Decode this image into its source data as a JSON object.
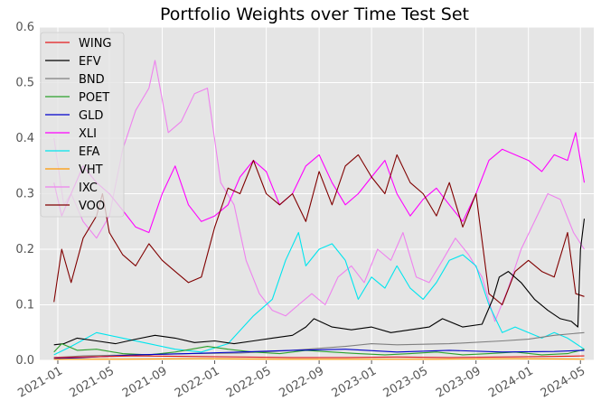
{
  "chart_data": {
    "type": "line",
    "title": "Portfolio Weights over Time Test Set",
    "xlabel": "",
    "ylabel": "",
    "ylim": [
      0,
      0.6
    ],
    "xlim": [
      "2020-11-20",
      "2024-06-01"
    ],
    "yticks": [
      "0.0",
      "0.1",
      "0.2",
      "0.3",
      "0.4",
      "0.5",
      "0.6"
    ],
    "xticks": [
      "2021-01",
      "2021-05",
      "2021-09",
      "2022-01",
      "2022-05",
      "2022-09",
      "2023-01",
      "2023-05",
      "2023-09",
      "2024-01",
      "2024-05"
    ],
    "grid": true,
    "legend_position": "top-left",
    "series": [
      {
        "name": "WING",
        "color": "#e41a1c",
        "x": [
          "2020-12-23",
          "2021-03-01",
          "2021-07-01",
          "2021-11-01",
          "2022-03-01",
          "2022-07-01",
          "2022-11-01",
          "2023-03-01",
          "2023-07-01",
          "2023-11-01",
          "2024-03-01",
          "2024-05-10"
        ],
        "y": [
          0.005,
          0.006,
          0.008,
          0.007,
          0.006,
          0.005,
          0.005,
          0.006,
          0.005,
          0.006,
          0.007,
          0.008
        ]
      },
      {
        "name": "EFV",
        "color": "#000000",
        "x": [
          "2020-12-23",
          "2021-01-15",
          "2021-02-15",
          "2021-04-01",
          "2021-05-15",
          "2021-07-01",
          "2021-08-15",
          "2021-10-01",
          "2021-11-15",
          "2022-01-01",
          "2022-02-15",
          "2022-04-01",
          "2022-05-15",
          "2022-07-01",
          "2022-08-01",
          "2022-08-20",
          "2022-10-01",
          "2022-11-15",
          "2023-01-01",
          "2023-02-15",
          "2023-04-01",
          "2023-05-15",
          "2023-06-15",
          "2023-08-01",
          "2023-09-15",
          "2023-10-10",
          "2023-10-25",
          "2023-11-15",
          "2023-12-15",
          "2024-01-15",
          "2024-02-15",
          "2024-03-15",
          "2024-04-10",
          "2024-04-25",
          "2024-05-01",
          "2024-05-10"
        ],
        "y": [
          0.028,
          0.03,
          0.04,
          0.035,
          0.03,
          0.038,
          0.045,
          0.04,
          0.032,
          0.035,
          0.03,
          0.035,
          0.04,
          0.045,
          0.06,
          0.075,
          0.06,
          0.055,
          0.06,
          0.05,
          0.055,
          0.06,
          0.075,
          0.06,
          0.065,
          0.11,
          0.15,
          0.16,
          0.14,
          0.11,
          0.09,
          0.075,
          0.07,
          0.06,
          0.2,
          0.255
        ]
      },
      {
        "name": "BND",
        "color": "#7f7f7f",
        "x": [
          "2020-12-23",
          "2021-03-01",
          "2021-07-01",
          "2021-11-01",
          "2022-03-01",
          "2022-07-01",
          "2022-11-01",
          "2023-01-01",
          "2023-03-01",
          "2023-07-01",
          "2023-11-01",
          "2024-01-01",
          "2024-03-01",
          "2024-05-10"
        ],
        "y": [
          0.005,
          0.008,
          0.01,
          0.012,
          0.013,
          0.018,
          0.025,
          0.03,
          0.028,
          0.03,
          0.035,
          0.038,
          0.045,
          0.05
        ]
      },
      {
        "name": "POET",
        "color": "#2ca02c",
        "x": [
          "2020-12-23",
          "2021-01-10",
          "2021-02-15",
          "2021-04-01",
          "2021-06-01",
          "2021-08-01",
          "2021-10-01",
          "2021-12-15",
          "2022-02-01",
          "2022-04-01",
          "2022-06-01",
          "2022-08-01",
          "2022-10-01",
          "2022-12-01",
          "2023-02-01",
          "2023-04-01",
          "2023-06-01",
          "2023-08-01",
          "2023-10-01",
          "2023-12-01",
          "2024-02-01",
          "2024-04-01",
          "2024-05-10"
        ],
        "y": [
          0.015,
          0.03,
          0.018,
          0.02,
          0.012,
          0.01,
          0.015,
          0.025,
          0.02,
          0.015,
          0.012,
          0.018,
          0.015,
          0.012,
          0.01,
          0.012,
          0.015,
          0.01,
          0.012,
          0.015,
          0.01,
          0.012,
          0.02
        ]
      },
      {
        "name": "GLD",
        "color": "#0000cc",
        "x": [
          "2020-12-23",
          "2021-03-01",
          "2021-07-01",
          "2021-11-01",
          "2022-03-01",
          "2022-07-01",
          "2022-11-01",
          "2023-03-01",
          "2023-07-01",
          "2023-11-01",
          "2024-03-01",
          "2024-05-10"
        ],
        "y": [
          0.003,
          0.005,
          0.01,
          0.012,
          0.015,
          0.018,
          0.02,
          0.015,
          0.018,
          0.015,
          0.016,
          0.018
        ]
      },
      {
        "name": "XLI",
        "color": "#ff00ff",
        "x": [
          "2020-12-23",
          "2021-01-10",
          "2021-02-01",
          "2021-03-01",
          "2021-04-01",
          "2021-05-01",
          "2021-06-01",
          "2021-07-01",
          "2021-08-01",
          "2021-09-01",
          "2021-10-01",
          "2021-11-01",
          "2021-12-01",
          "2022-01-01",
          "2022-02-01",
          "2022-03-01",
          "2022-04-01",
          "2022-05-01",
          "2022-06-01",
          "2022-07-01",
          "2022-08-01",
          "2022-09-01",
          "2022-10-01",
          "2022-11-01",
          "2022-12-01",
          "2023-01-01",
          "2023-02-01",
          "2023-03-01",
          "2023-04-01",
          "2023-05-01",
          "2023-06-01",
          "2023-07-01",
          "2023-08-01",
          "2023-09-01",
          "2023-10-01",
          "2023-11-01",
          "2023-12-01",
          "2024-01-01",
          "2024-02-01",
          "2024-03-01",
          "2024-04-01",
          "2024-04-20",
          "2024-05-10"
        ],
        "y": [
          0.32,
          0.26,
          0.3,
          0.35,
          0.32,
          0.3,
          0.27,
          0.24,
          0.23,
          0.3,
          0.35,
          0.28,
          0.25,
          0.26,
          0.28,
          0.33,
          0.36,
          0.34,
          0.28,
          0.3,
          0.35,
          0.37,
          0.32,
          0.28,
          0.3,
          0.33,
          0.36,
          0.3,
          0.26,
          0.29,
          0.31,
          0.28,
          0.25,
          0.3,
          0.36,
          0.38,
          0.37,
          0.36,
          0.34,
          0.37,
          0.36,
          0.41,
          0.32
        ]
      },
      {
        "name": "EFA",
        "color": "#00e5ee",
        "x": [
          "2020-12-23",
          "2021-02-01",
          "2021-04-01",
          "2021-06-01",
          "2021-08-01",
          "2021-10-01",
          "2021-12-01",
          "2022-02-01",
          "2022-04-01",
          "2022-05-15",
          "2022-06-15",
          "2022-07-15",
          "2022-08-01",
          "2022-09-01",
          "2022-10-01",
          "2022-11-01",
          "2022-12-01",
          "2023-01-01",
          "2023-02-01",
          "2023-03-01",
          "2023-04-01",
          "2023-05-01",
          "2023-06-01",
          "2023-07-01",
          "2023-08-01",
          "2023-09-01",
          "2023-10-01",
          "2023-11-01",
          "2023-12-01",
          "2024-01-01",
          "2024-02-01",
          "2024-03-01",
          "2024-04-01",
          "2024-05-10"
        ],
        "y": [
          0.01,
          0.025,
          0.05,
          0.04,
          0.03,
          0.02,
          0.015,
          0.03,
          0.08,
          0.11,
          0.18,
          0.23,
          0.17,
          0.2,
          0.21,
          0.18,
          0.11,
          0.15,
          0.13,
          0.17,
          0.13,
          0.11,
          0.14,
          0.18,
          0.19,
          0.17,
          0.1,
          0.05,
          0.06,
          0.05,
          0.04,
          0.05,
          0.04,
          0.02
        ]
      },
      {
        "name": "VHT",
        "color": "#ff9900",
        "x": [
          "2020-12-23",
          "2021-06-01",
          "2021-12-01",
          "2022-06-01",
          "2022-12-01",
          "2023-06-01",
          "2023-12-01",
          "2024-05-10"
        ],
        "y": [
          0.002,
          0.002,
          0.003,
          0.002,
          0.002,
          0.002,
          0.003,
          0.002
        ]
      },
      {
        "name": "IXC",
        "color": "#ee82ee",
        "x": [
          "2020-12-23",
          "2021-01-15",
          "2021-02-01",
          "2021-03-01",
          "2021-04-01",
          "2021-05-01",
          "2021-06-01",
          "2021-07-01",
          "2021-08-01",
          "2021-08-15",
          "2021-09-15",
          "2021-10-15",
          "2021-11-15",
          "2021-12-15",
          "2022-01-15",
          "2022-02-15",
          "2022-03-15",
          "2022-04-15",
          "2022-05-15",
          "2022-06-15",
          "2022-07-15",
          "2022-08-15",
          "2022-09-15",
          "2022-10-15",
          "2022-11-15",
          "2022-12-15",
          "2023-01-15",
          "2023-02-15",
          "2023-03-15",
          "2023-04-15",
          "2023-05-15",
          "2023-06-15",
          "2023-07-15",
          "2023-08-15",
          "2023-09-15",
          "2023-10-15",
          "2023-11-15",
          "2023-12-15",
          "2024-01-15",
          "2024-02-15",
          "2024-03-15",
          "2024-04-15",
          "2024-05-10"
        ],
        "y": [
          0.4,
          0.28,
          0.3,
          0.25,
          0.22,
          0.26,
          0.38,
          0.45,
          0.49,
          0.54,
          0.41,
          0.43,
          0.48,
          0.49,
          0.32,
          0.28,
          0.18,
          0.12,
          0.09,
          0.08,
          0.1,
          0.12,
          0.1,
          0.15,
          0.17,
          0.14,
          0.2,
          0.18,
          0.23,
          0.15,
          0.14,
          0.18,
          0.22,
          0.19,
          0.15,
          0.07,
          0.13,
          0.2,
          0.25,
          0.3,
          0.29,
          0.23,
          0.2
        ]
      },
      {
        "name": "VOO",
        "color": "#800000",
        "x": [
          "2020-12-23",
          "2021-01-10",
          "2021-02-01",
          "2021-03-01",
          "2021-04-01",
          "2021-04-15",
          "2021-05-01",
          "2021-06-01",
          "2021-07-01",
          "2021-08-01",
          "2021-09-01",
          "2021-10-01",
          "2021-11-01",
          "2021-12-01",
          "2022-01-01",
          "2022-02-01",
          "2022-03-01",
          "2022-04-01",
          "2022-05-01",
          "2022-06-01",
          "2022-07-01",
          "2022-08-01",
          "2022-09-01",
          "2022-10-01",
          "2022-11-01",
          "2022-12-01",
          "2023-01-01",
          "2023-02-01",
          "2023-03-01",
          "2023-04-01",
          "2023-05-01",
          "2023-06-01",
          "2023-07-01",
          "2023-08-01",
          "2023-09-01",
          "2023-10-01",
          "2023-11-01",
          "2023-12-01",
          "2024-01-01",
          "2024-02-01",
          "2024-03-01",
          "2024-04-01",
          "2024-04-20",
          "2024-05-10"
        ],
        "y": [
          0.105,
          0.2,
          0.14,
          0.22,
          0.26,
          0.3,
          0.23,
          0.19,
          0.17,
          0.21,
          0.18,
          0.16,
          0.14,
          0.15,
          0.24,
          0.31,
          0.3,
          0.36,
          0.3,
          0.28,
          0.3,
          0.25,
          0.34,
          0.28,
          0.35,
          0.37,
          0.33,
          0.3,
          0.37,
          0.32,
          0.3,
          0.26,
          0.32,
          0.24,
          0.3,
          0.12,
          0.1,
          0.16,
          0.18,
          0.16,
          0.15,
          0.23,
          0.12,
          0.115
        ]
      }
    ]
  }
}
